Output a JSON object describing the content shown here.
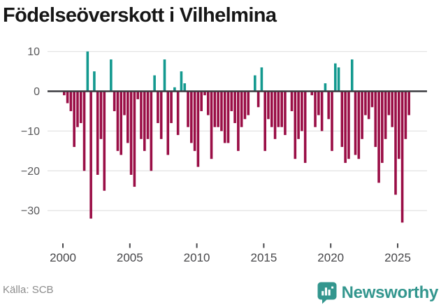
{
  "title": "Födelseöverskott i Vilhelmina",
  "footer": {
    "source": "Källa: SCB",
    "brand": "Newsworthy"
  },
  "colors": {
    "positive": "#13998f",
    "negative": "#9a0e46",
    "zero_line": "#3b3b40",
    "grid": "#e4e4e4",
    "y_label_text": "#58585a",
    "x_label_text": "#47474a",
    "tick_mark": "#4a4a4d",
    "title_text": "#161616",
    "source_text": "#8c8c8c",
    "brand_teal": "#33968e"
  },
  "chart_data": {
    "type": "bar",
    "title": "Födelseöverskott i Vilhelmina",
    "xlabel": "",
    "ylabel": "",
    "frequency": "quarterly",
    "x_start": "2000 Q1",
    "x_end": "2025 Q4",
    "ylim": [
      -35,
      12
    ],
    "grid": true,
    "y_ticks": [
      10,
      0,
      -10,
      -20,
      -30
    ],
    "y_tick_labels": [
      "10",
      "0",
      "−10",
      "−20",
      "−30"
    ],
    "x_tick_years": [
      2000,
      2005,
      2010,
      2015,
      2020,
      2025
    ],
    "x_tick_labels": [
      "2000",
      "2005",
      "2010",
      "2015",
      "2020",
      "2025"
    ],
    "values": [
      -1,
      -3,
      -5,
      -14,
      -9,
      -8,
      -20,
      10,
      -32,
      5,
      -21,
      -12,
      -25,
      0,
      8,
      -5,
      -15,
      -16,
      -6,
      -13,
      -21,
      -24,
      -2,
      -12,
      -15,
      -12,
      -20,
      4,
      -8,
      -12,
      8,
      -16,
      -8,
      1,
      -11,
      5,
      2,
      -9,
      -13,
      -15,
      -19,
      -5,
      -1,
      -6,
      -17,
      -9,
      -9,
      -10,
      -13,
      -13,
      -5,
      -8,
      -15,
      -9,
      -7,
      -6,
      0,
      4,
      -4,
      6,
      -15,
      -7,
      -9,
      -12,
      -9,
      -9,
      -11,
      0,
      -5,
      -17,
      -12,
      -10,
      -18,
      0,
      -1,
      -9,
      -6,
      -10,
      2,
      -7,
      -15,
      7,
      6,
      -14,
      -18,
      -17,
      8,
      -16,
      -17,
      -12,
      -6,
      -7,
      -4,
      -14,
      -23,
      -18,
      -12,
      -6,
      -9,
      -26,
      -17,
      -33,
      -12,
      -6
    ]
  }
}
